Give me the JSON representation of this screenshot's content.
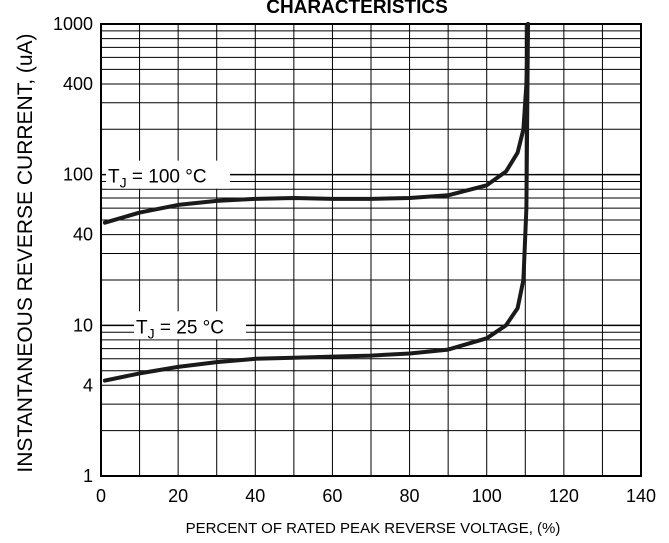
{
  "chart_data": {
    "type": "line",
    "title": "CHARACTERISTICS",
    "xlabel": "PERCENT OF RATED PEAK REVERSE VOLTAGE, (%)",
    "ylabel": "INSTANTANEOUS REVERSE CURRENT, (uA)",
    "xlim": [
      0,
      140
    ],
    "ylim": [
      1,
      1000
    ],
    "yscale": "log",
    "grid": true,
    "x_ticks": [
      "0",
      "20",
      "40",
      "60",
      "80",
      "100",
      "120",
      "140"
    ],
    "x_tick_values": [
      0,
      20,
      40,
      60,
      80,
      100,
      120,
      140
    ],
    "y_ticks": [
      "1",
      "4",
      "10",
      "40",
      "100",
      "400",
      "1000"
    ],
    "y_tick_values": [
      1,
      4,
      10,
      40,
      100,
      400,
      1000
    ],
    "annotations": [
      {
        "text_main": "T",
        "text_sub": "J",
        "text_rest": " = 100 °C",
        "x": 1,
        "y": 100
      },
      {
        "text_main": "T",
        "text_sub": "J",
        "text_rest": " = 25 °C",
        "x": 8,
        "y": 10
      }
    ],
    "series": [
      {
        "x": [
          1,
          10,
          20,
          30,
          40,
          50,
          60,
          70,
          80,
          90,
          100,
          105,
          108,
          109.5,
          110.3,
          110.7
        ],
        "y": [
          48,
          56,
          63,
          67,
          69,
          70,
          69,
          69,
          70,
          73,
          85,
          105,
          140,
          200,
          400,
          1000
        ]
      },
      {
        "x": [
          1,
          10,
          20,
          30,
          40,
          50,
          60,
          70,
          80,
          90,
          100,
          105,
          108,
          109.5,
          110.3,
          110.7
        ],
        "y": [
          4.3,
          4.8,
          5.3,
          5.7,
          6.0,
          6.1,
          6.2,
          6.3,
          6.5,
          6.9,
          8.2,
          10,
          13,
          20,
          60,
          1000
        ]
      }
    ]
  }
}
